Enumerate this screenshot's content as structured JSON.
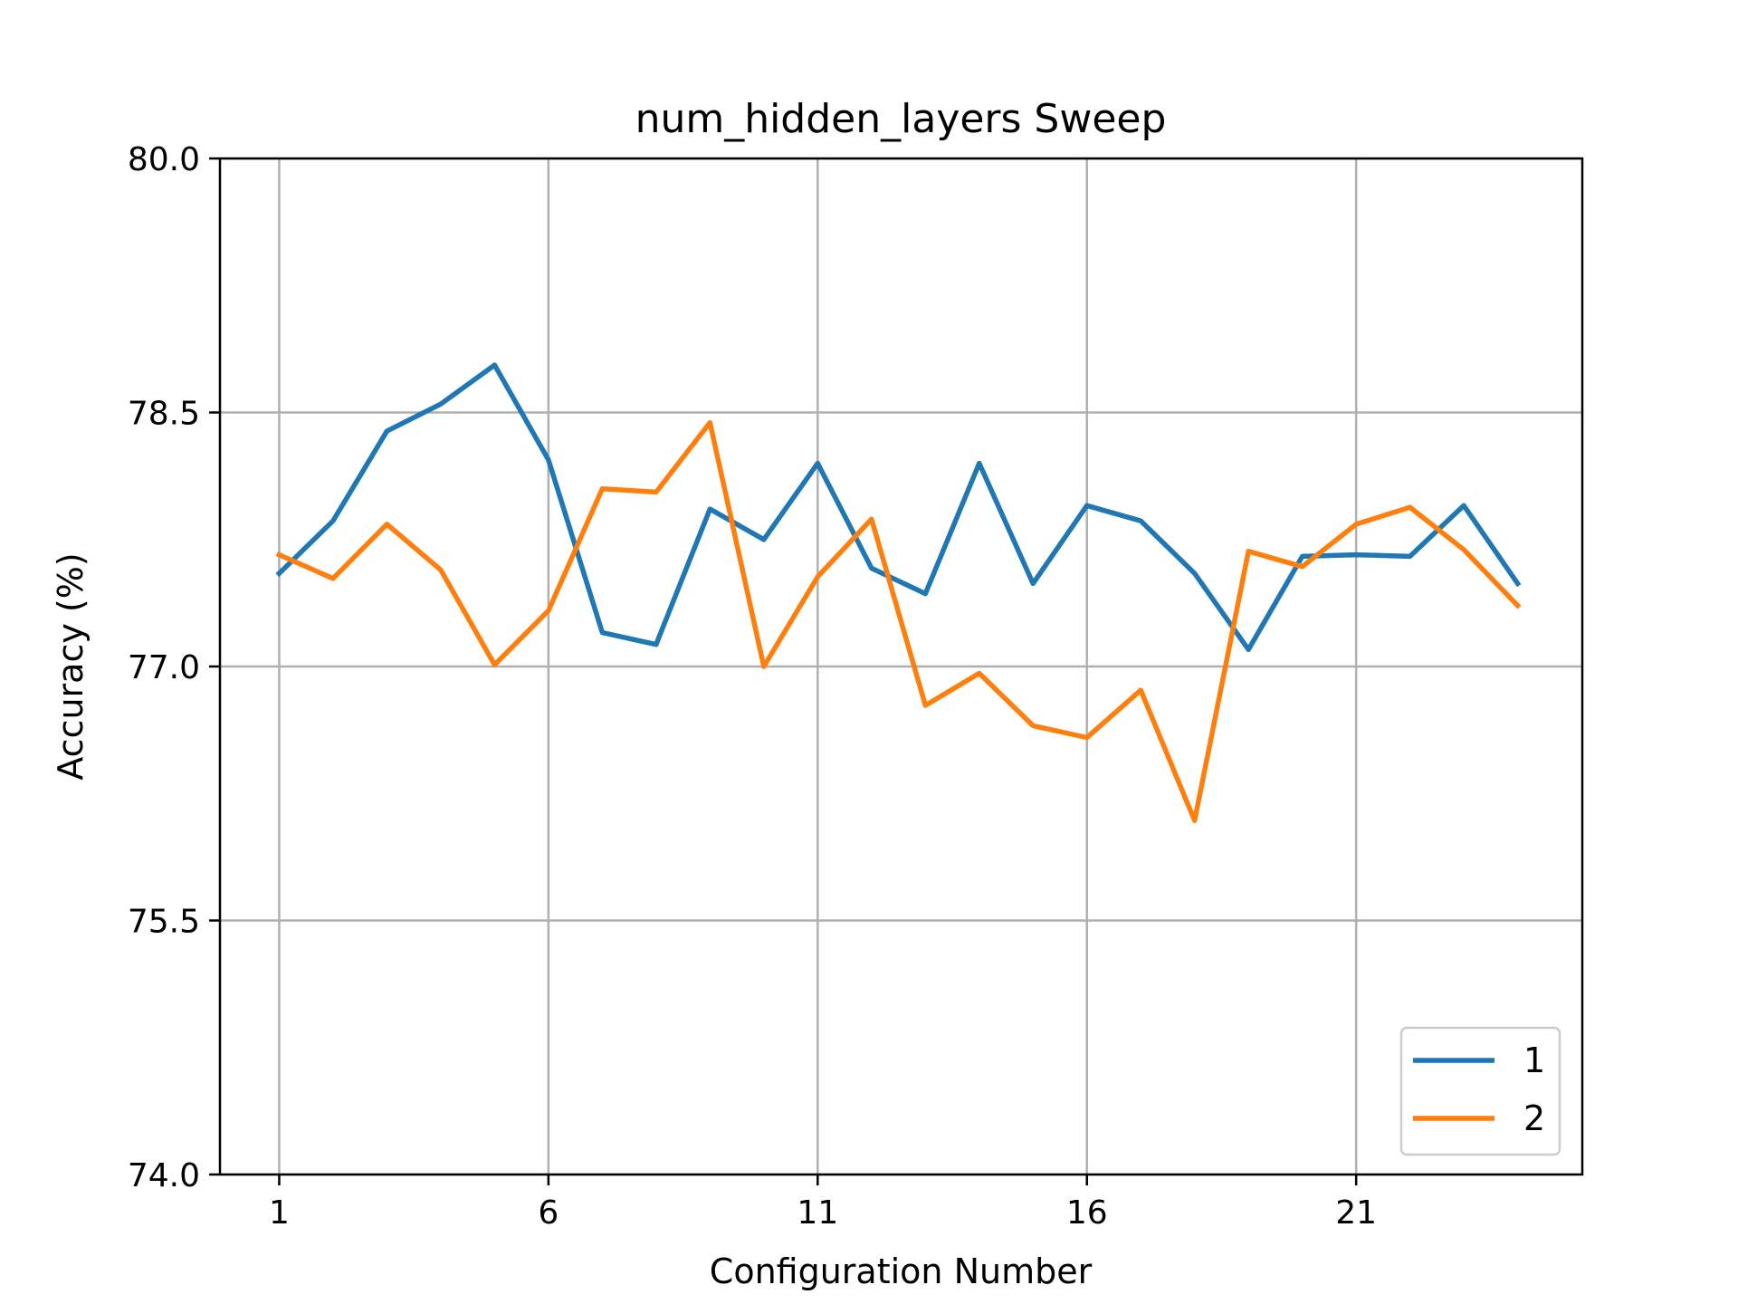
{
  "chart_data": {
    "type": "line",
    "title": "num_hidden_layers Sweep",
    "xlabel": "Configuration Number",
    "ylabel": "Accuracy (%)",
    "x": [
      1,
      2,
      3,
      4,
      5,
      6,
      7,
      8,
      9,
      10,
      11,
      12,
      13,
      14,
      15,
      16,
      17,
      18,
      19,
      20,
      21,
      22,
      23,
      24
    ],
    "xlim": [
      -0.1,
      25.2
    ],
    "ylim": [
      74.0,
      80.0
    ],
    "xticks": [
      1,
      6,
      11,
      16,
      21
    ],
    "xtick_labels": [
      "1",
      "6",
      "11",
      "16",
      "21"
    ],
    "yticks": [
      74.0,
      75.5,
      77.0,
      78.5,
      80.0
    ],
    "ytick_labels": [
      "74.0",
      "75.5",
      "77.0",
      "78.5",
      "80.0"
    ],
    "grid": true,
    "legend_position": "lower-right",
    "series": [
      {
        "name": "1",
        "color": "#1f77b4",
        "values": [
          77.55,
          77.86,
          78.39,
          78.55,
          78.78,
          78.22,
          77.2,
          77.13,
          77.93,
          77.75,
          78.2,
          77.58,
          77.43,
          78.2,
          77.49,
          77.95,
          77.86,
          77.55,
          77.1,
          77.65,
          77.66,
          77.65,
          77.95,
          77.49
        ]
      },
      {
        "name": "2",
        "color": "#ff7f0e",
        "values": [
          77.66,
          77.52,
          77.84,
          77.57,
          77.01,
          77.33,
          78.05,
          78.03,
          78.44,
          77.0,
          77.53,
          77.87,
          76.77,
          76.96,
          76.65,
          76.58,
          76.86,
          76.09,
          77.68,
          77.59,
          77.84,
          77.94,
          77.69,
          77.36
        ]
      }
    ]
  }
}
